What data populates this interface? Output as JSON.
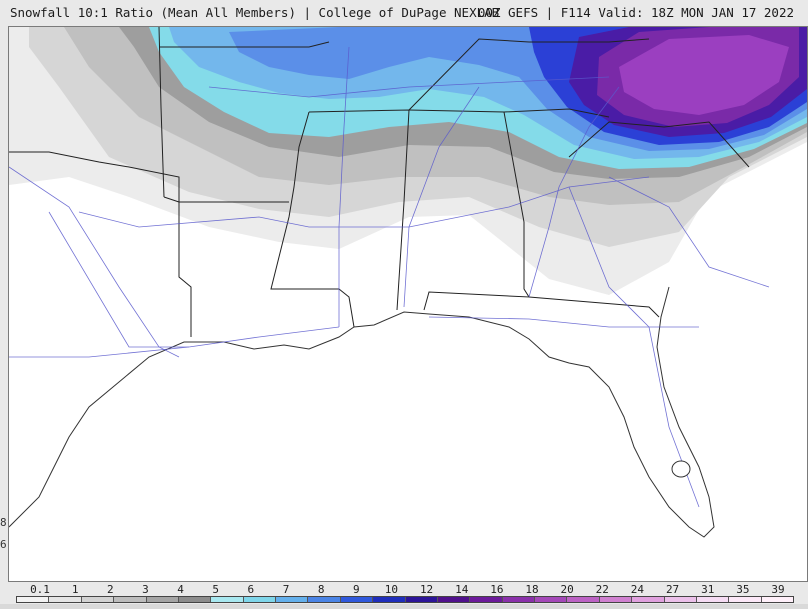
{
  "header": {
    "left": "Snowfall 10:1 Ratio (Mean All Members) | College of DuPage NEXLAB",
    "right": "00Z GEFS | F114 Valid: 18Z MON JAN 17 2022"
  },
  "side_marks": [
    "8",
    "6"
  ],
  "legend": {
    "labels": [
      "0.1",
      "1",
      "2",
      "3",
      "4",
      "5",
      "6",
      "7",
      "8",
      "9",
      "10",
      "12",
      "14",
      "16",
      "18",
      "20",
      "22",
      "24",
      "27",
      "31",
      "35",
      "39"
    ],
    "colors": [
      "#f2f2f2",
      "#e4e4e4",
      "#d2d2d2",
      "#bcbcbc",
      "#a4a4a4",
      "#8c8c8c",
      "#a8e8f0",
      "#7fd6ea",
      "#64b0ec",
      "#4a84e6",
      "#2f58dc",
      "#1f2ebc",
      "#2c1498",
      "#50108c",
      "#6c1a9a",
      "#8a30aa",
      "#a448b8",
      "#bc62c4",
      "#d080d0",
      "#e0a0de",
      "#ecc0ea",
      "#f6dcf4",
      "#fce8f8",
      "#fff0fa"
    ]
  },
  "colors": {
    "snow_light_gray": "#e2e2e2",
    "snow_mid_gray": "#c4c4c4",
    "snow_dark_gray": "#9a9a9a",
    "snow_cyan": "#8fe3ef",
    "snow_blue": "#5b8fe8",
    "snow_deep_blue": "#2b40d6",
    "snow_purple": "#7a2aa8",
    "snow_magenta": "#9b3fc0",
    "roads": "#5a5acd",
    "borders": "#333333"
  }
}
